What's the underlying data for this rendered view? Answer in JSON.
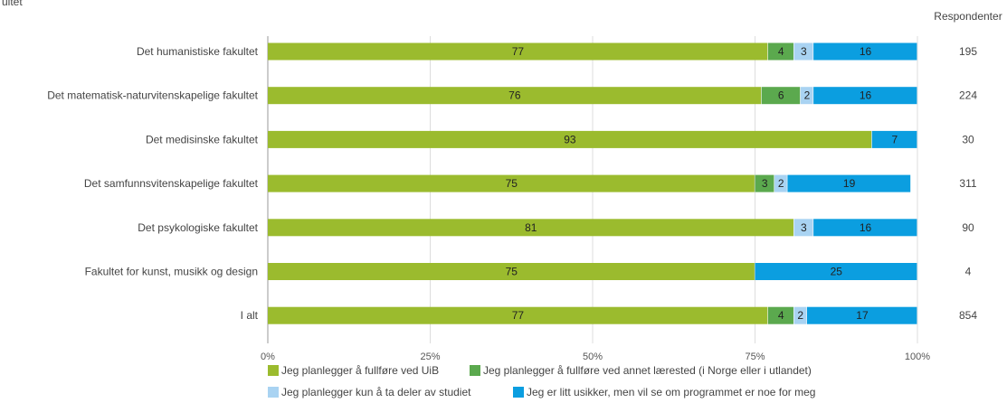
{
  "chart_data": {
    "type": "bar",
    "orientation": "horizontal",
    "stacked": true,
    "corner_title": "ultet",
    "respondents_header": "Respondenter",
    "categories": [
      "Det humanistiske fakultet",
      "Det matematisk-naturvitenskapelige fakultet",
      "Det medisinske fakultet",
      "Det samfunnsvitenskapelige fakultet",
      "Det psykologiske fakultet",
      "Fakultet for kunst, musikk og design",
      "I alt"
    ],
    "respondents": [
      "195",
      "224",
      "30",
      "311",
      "90",
      "4",
      "854"
    ],
    "series": [
      {
        "name": "Jeg planlegger å fullføre ved UiB",
        "color": "#9BBB2E",
        "values": [
          77,
          76,
          93,
          75,
          81,
          75,
          77
        ]
      },
      {
        "name": "Jeg planlegger å fullføre ved annet lærested (i Norge eller i utlandet)",
        "color": "#5BA94E",
        "values": [
          4,
          6,
          0,
          3,
          0,
          0,
          4
        ]
      },
      {
        "name": "Jeg planlegger kun å ta deler av studiet",
        "color": "#A9D3F2",
        "values": [
          3,
          2,
          0,
          2,
          3,
          0,
          2
        ]
      },
      {
        "name": "Jeg er litt usikker, men vil se om programmet er noe for meg",
        "color": "#0B9EE0",
        "values": [
          16,
          16,
          7,
          19,
          16,
          25,
          17
        ]
      }
    ],
    "xlim": [
      0,
      100
    ],
    "x_ticks": [
      "0%",
      "25%",
      "50%",
      "75%",
      "100%"
    ],
    "grid": true,
    "legend_position": "bottom"
  }
}
